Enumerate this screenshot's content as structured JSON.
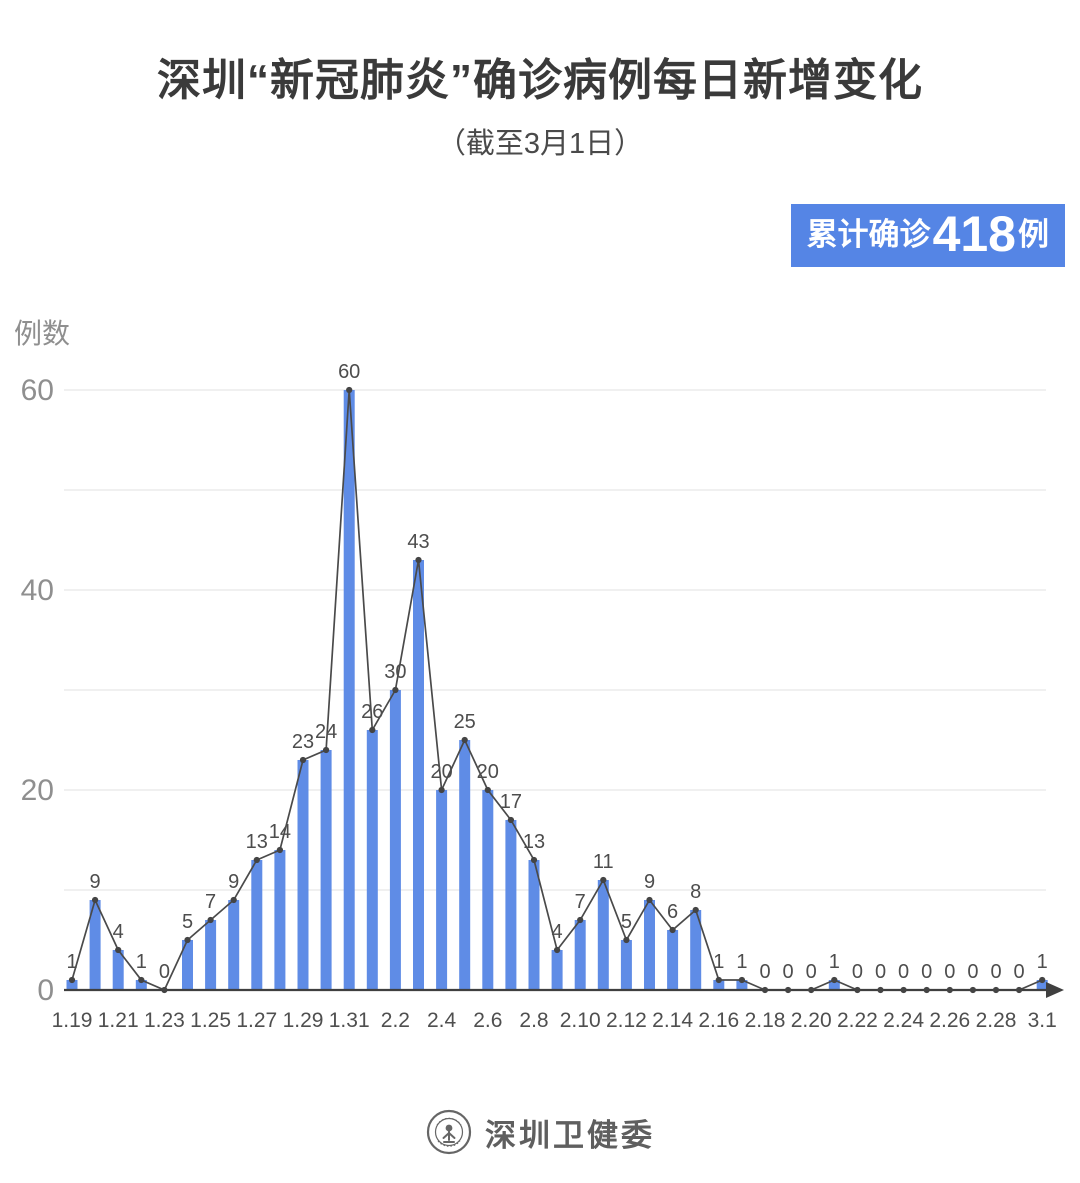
{
  "header": {
    "title": "深圳“新冠肺炎”确诊病例每日新增变化",
    "subtitle": "（截至3月1日）"
  },
  "badge": {
    "prefix": "累计确诊",
    "value": "418",
    "suffix": "例"
  },
  "chart_data": {
    "type": "bar",
    "overlay": "line",
    "title": "深圳“新冠肺炎”确诊病例每日新增变化",
    "subtitle": "（截至3月1日）",
    "ylabel": "例数",
    "xlabel": "",
    "categories": [
      "1.19",
      "1.20",
      "1.21",
      "1.22",
      "1.23",
      "1.24",
      "1.25",
      "1.26",
      "1.27",
      "1.28",
      "1.29",
      "1.30",
      "1.31",
      "2.1",
      "2.2",
      "2.3",
      "2.4",
      "2.5",
      "2.6",
      "2.7",
      "2.8",
      "2.9",
      "2.10",
      "2.11",
      "2.12",
      "2.13",
      "2.14",
      "2.15",
      "2.16",
      "2.17",
      "2.18",
      "2.19",
      "2.20",
      "2.21",
      "2.22",
      "2.23",
      "2.24",
      "2.25",
      "2.26",
      "2.27",
      "2.28",
      "2.29",
      "3.1"
    ],
    "values": [
      1,
      9,
      4,
      1,
      0,
      5,
      7,
      9,
      13,
      14,
      23,
      24,
      60,
      26,
      30,
      43,
      20,
      25,
      20,
      17,
      13,
      4,
      7,
      11,
      5,
      9,
      6,
      8,
      1,
      1,
      0,
      0,
      0,
      1,
      0,
      0,
      0,
      0,
      0,
      0,
      0,
      0,
      1
    ],
    "value_labels_shown": true,
    "x_label_every": 2,
    "ylim": [
      0,
      60
    ],
    "yticks": [
      0,
      20,
      40,
      60
    ],
    "grid_values": [
      10,
      20,
      30,
      40,
      50,
      60
    ],
    "grid": "horizontal",
    "legend_position": "none",
    "cumulative_total": 418,
    "colors": {
      "bar": "#5F8CE6",
      "line": "#4a4a4a",
      "marker": "#444444",
      "axis": "#3f3f3f",
      "grid": "#ececec",
      "ytick_text": "#8f8f8f",
      "xtick_text": "#4f4f4f",
      "value_text": "#4d4d4d",
      "badge_bg": "#5585E5",
      "badge_text": "#ffffff"
    }
  },
  "footer": {
    "org": "深圳卫健委"
  }
}
